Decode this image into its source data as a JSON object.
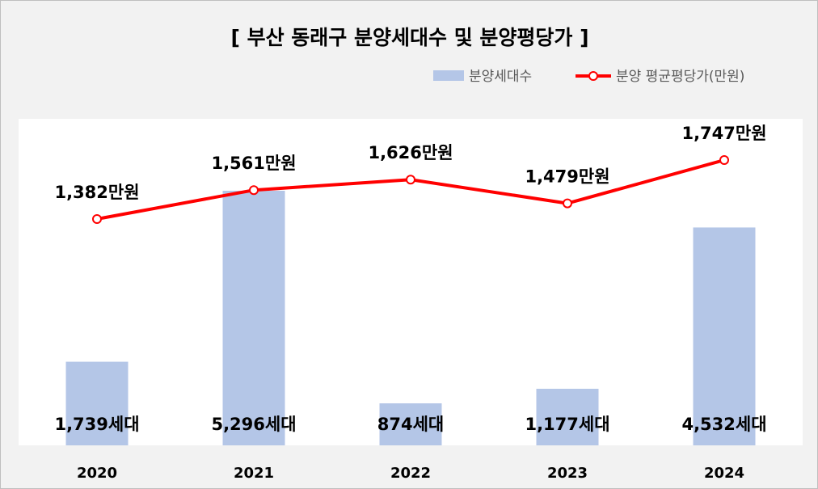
{
  "chart_data": {
    "type": "bar+line",
    "title": "[ 부산 동래구 분양세대수 및 분양평당가 ]",
    "categories": [
      "2020",
      "2021",
      "2022",
      "2023",
      "2024"
    ],
    "series": [
      {
        "name": "분양세대수",
        "type": "bar",
        "color": "#b4c6e7",
        "values": [
          1739,
          5296,
          874,
          1177,
          4532
        ],
        "labels": [
          "1,739세대",
          "5,296세대",
          "874세대",
          "1,177세대",
          "4,532세대"
        ]
      },
      {
        "name": "분양 평균평당가(만원)",
        "type": "line",
        "color": "#ff0000",
        "values": [
          1382,
          1561,
          1626,
          1479,
          1747
        ],
        "labels": [
          "1,382만원",
          "1,561만원",
          "1,626만원",
          "1,479만원",
          "1,747만원"
        ]
      }
    ],
    "legend_position": "top-right",
    "grid": false
  }
}
